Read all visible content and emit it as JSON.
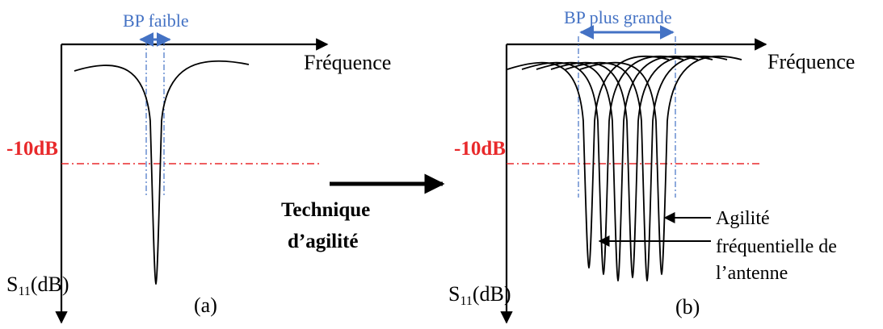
{
  "colors": {
    "axis": "#000000",
    "bandwidth": "#4472c4",
    "threshold": "#e8292b",
    "curve": "#000000"
  },
  "panel_a": {
    "bandwidth_label": "BP faible",
    "frequency_label": "Fréquence",
    "threshold_label": "-10dB",
    "yaxis_label_main": "S",
    "yaxis_label_sub": "11",
    "yaxis_label_unit": "(dB)",
    "caption": "(a)"
  },
  "middle": {
    "technique_line1": "Technique",
    "technique_line2": "d’agilité"
  },
  "panel_b": {
    "bandwidth_label": "BP plus grande",
    "frequency_label": "Fréquence",
    "threshold_label": "-10dB",
    "yaxis_label_main": "S",
    "yaxis_label_sub": "11",
    "yaxis_label_unit": "(dB)",
    "caption": "(b)",
    "annotation_agility_word": "Agilité",
    "annotation_line1": "fréquentielle de",
    "annotation_line2": "l’antenne"
  }
}
